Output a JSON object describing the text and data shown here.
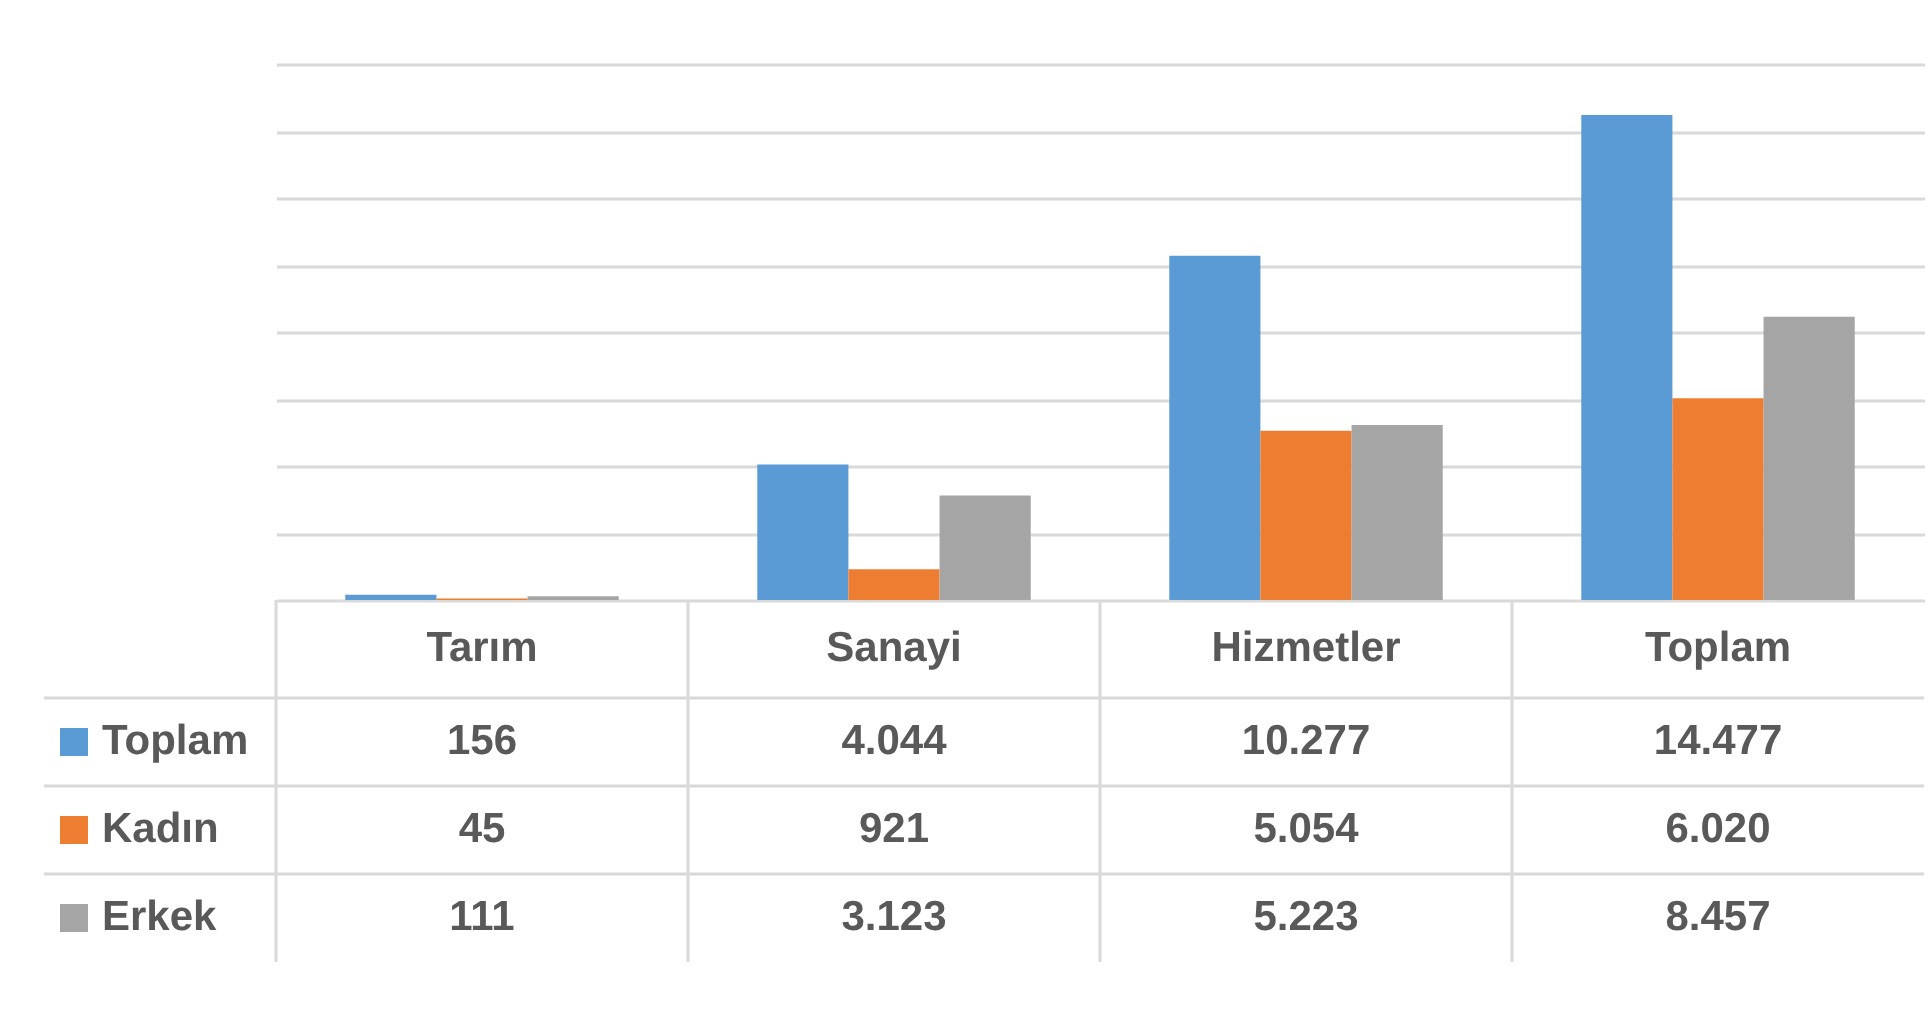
{
  "chart_data": {
    "type": "bar",
    "categories": [
      "Tarım",
      "Sanayi",
      "Hizmetler",
      "Toplam"
    ],
    "series": [
      {
        "name": "Toplam",
        "color": "#5b9bd5",
        "values": [
          156,
          4044,
          10277,
          14477
        ],
        "value_labels": [
          "156",
          "4.044",
          "10.277",
          "14.477"
        ]
      },
      {
        "name": "Kadın",
        "color": "#ed7d31",
        "values": [
          45,
          921,
          5054,
          6020
        ],
        "value_labels": [
          "45",
          "921",
          "5.054",
          "6.020"
        ]
      },
      {
        "name": "Erkek",
        "color": "#a5a5a5",
        "values": [
          111,
          3123,
          5223,
          8457
        ],
        "value_labels": [
          "111",
          "3.123",
          "5.223",
          "8.457"
        ]
      }
    ],
    "ylim": [
      0,
      16000
    ],
    "yticks": [
      {
        "value": 0,
        "label": null
      },
      {
        "value": 2000,
        "label": null
      },
      {
        "value": 4000,
        "label": null
      },
      {
        "value": 6000,
        "label": null
      },
      {
        "value": 8000,
        "label": null
      },
      {
        "value": 10000,
        "label": null
      },
      {
        "value": 12000,
        "label": null
      },
      {
        "value": 14000,
        "label": null
      },
      {
        "value": 16000,
        "label": null
      }
    ],
    "grid": "y",
    "legend": "bottom left",
    "tick_labels": "x"
  }
}
